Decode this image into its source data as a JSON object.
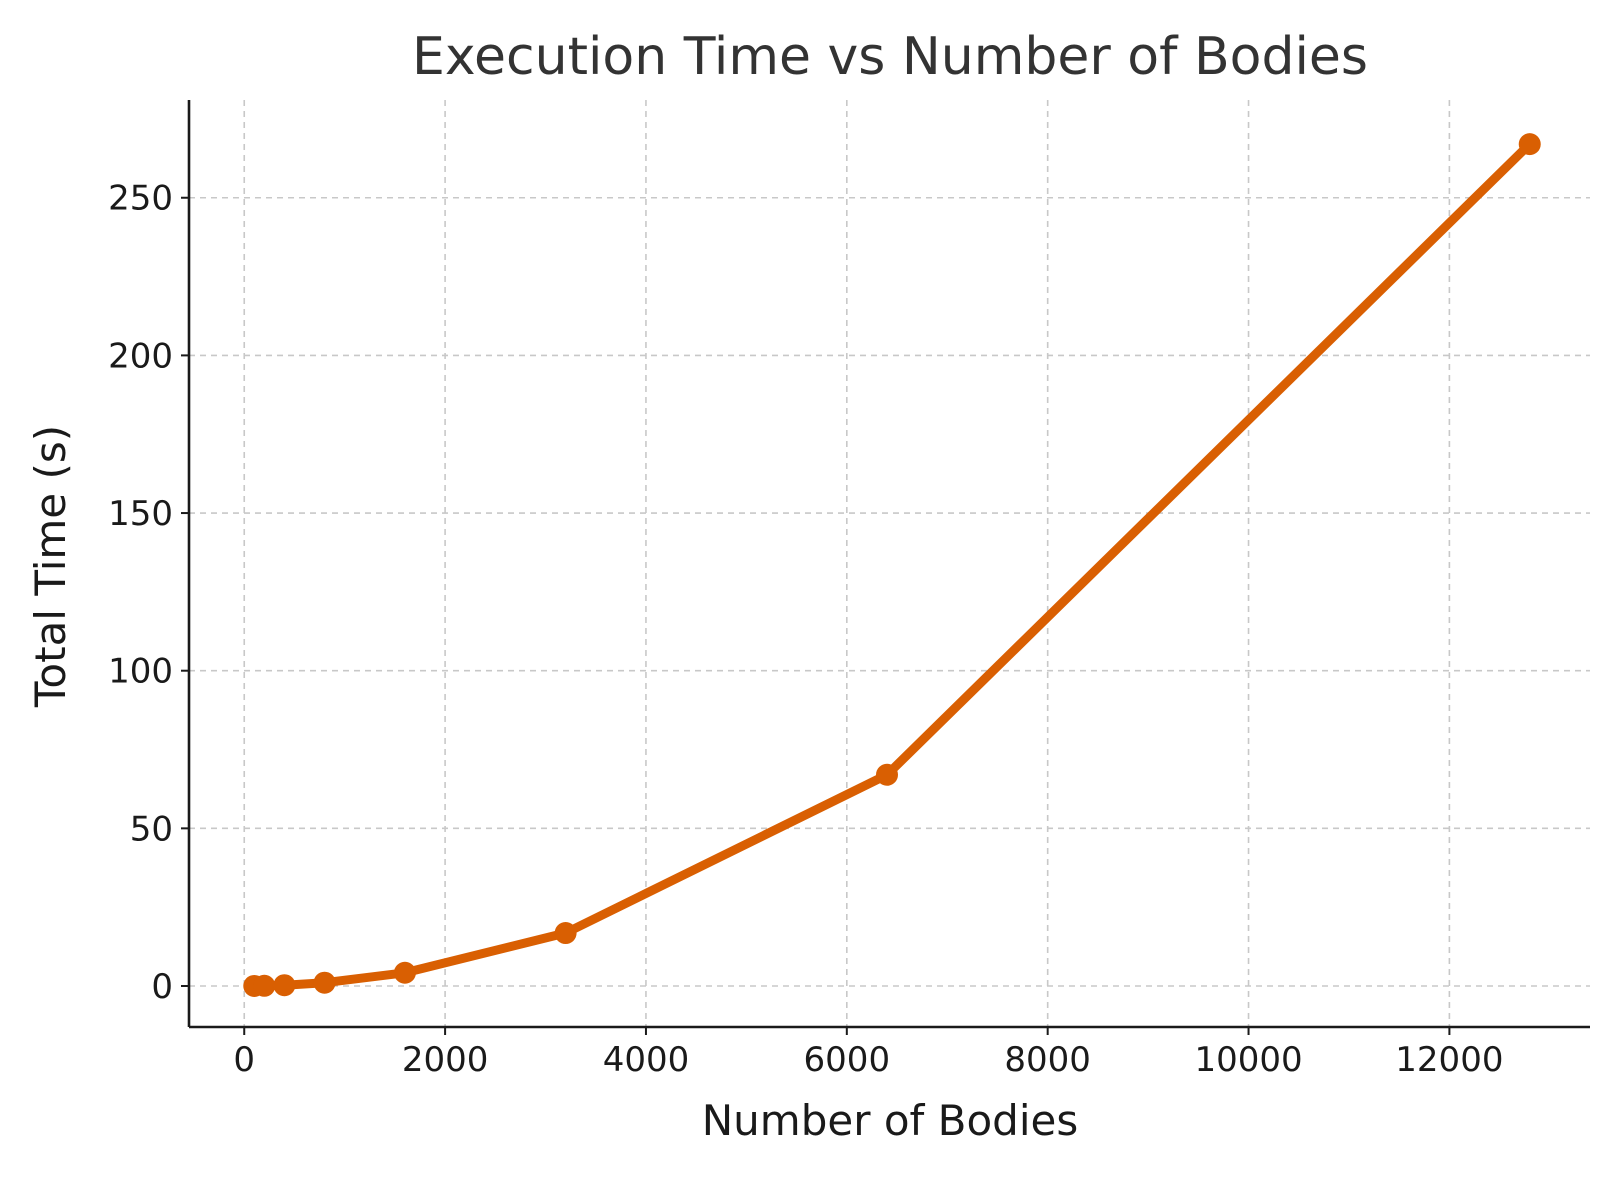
{
  "chart_data": {
    "type": "line",
    "title": "Execution Time vs Number of Bodies",
    "xlabel": "Number of Bodies",
    "ylabel": "Total Time (s)",
    "xlim": [
      -550,
      13400
    ],
    "ylim": [
      -13,
      281
    ],
    "xticks": [
      0,
      2000,
      4000,
      6000,
      8000,
      10000,
      12000
    ],
    "yticks": [
      0,
      50,
      100,
      150,
      200,
      250
    ],
    "grid": true,
    "color": "#d95f02",
    "series": [
      {
        "x": [
          100,
          200,
          400,
          800,
          1600,
          3200,
          6400,
          12800
        ],
        "y": [
          0.02,
          0.07,
          0.26,
          1.05,
          4.2,
          16.8,
          67,
          267
        ]
      }
    ]
  }
}
